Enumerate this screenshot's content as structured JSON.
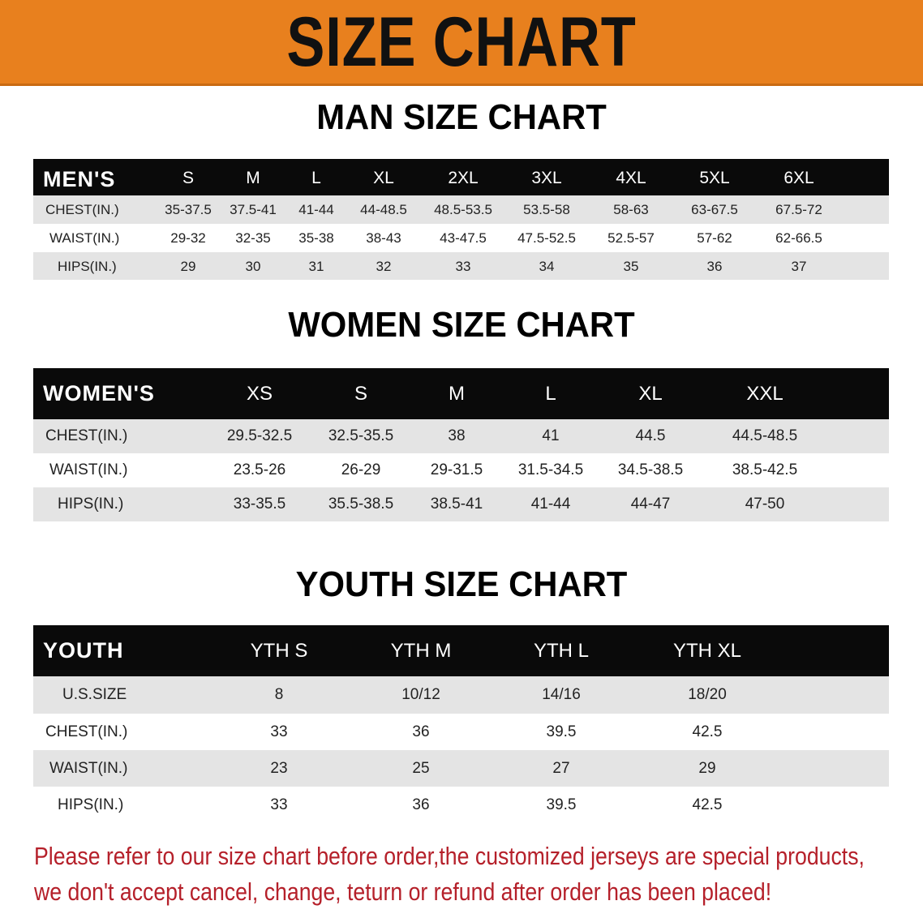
{
  "banner": {
    "title": "SIZE CHART",
    "color": "#e8801e"
  },
  "men": {
    "title": "MAN SIZE CHART",
    "header": [
      "MEN'S",
      "S",
      "M",
      "L",
      "XL",
      "2XL",
      "3XL",
      "4XL",
      "5XL",
      "6XL"
    ],
    "rows": [
      [
        "CHEST(IN.)",
        "35-37.5",
        "37.5-41",
        "41-44",
        "44-48.5",
        "48.5-53.5",
        "53.5-58",
        "58-63",
        "63-67.5",
        "67.5-72"
      ],
      [
        "WAIST(IN.)",
        "29-32",
        "32-35",
        "35-38",
        "38-43",
        "43-47.5",
        "47.5-52.5",
        "52.5-57",
        "57-62",
        "62-66.5"
      ],
      [
        "HIPS(IN.)",
        "29",
        "30",
        "31",
        "32",
        "33",
        "34",
        "35",
        "36",
        "37"
      ]
    ]
  },
  "women": {
    "title": "WOMEN SIZE CHART",
    "header": [
      "WOMEN'S",
      "XS",
      "S",
      "M",
      "L",
      "XL",
      "XXL"
    ],
    "rows": [
      [
        "CHEST(IN.)",
        "29.5-32.5",
        "32.5-35.5",
        "38",
        "41",
        "44.5",
        "44.5-48.5"
      ],
      [
        "WAIST(IN.)",
        "23.5-26",
        "26-29",
        "29-31.5",
        "31.5-34.5",
        "34.5-38.5",
        "38.5-42.5"
      ],
      [
        "HIPS(IN.)",
        "33-35.5",
        "35.5-38.5",
        "38.5-41",
        "41-44",
        "44-47",
        "47-50"
      ]
    ]
  },
  "youth": {
    "title": "YOUTH SIZE CHART",
    "header": [
      "YOUTH",
      "YTH S",
      "YTH M",
      "YTH L",
      "YTH XL"
    ],
    "rows": [
      [
        "U.S.SIZE",
        "8",
        "10/12",
        "14/16",
        "18/20"
      ],
      [
        "CHEST(IN.)",
        "33",
        "36",
        "39.5",
        "42.5"
      ],
      [
        "WAIST(IN.)",
        "23",
        "25",
        "27",
        "29"
      ],
      [
        "HIPS(IN.)",
        "33",
        "36",
        "39.5",
        "42.5"
      ]
    ]
  },
  "notice": {
    "line1": "Please refer to our size chart before order,the customized jerseys are special products,",
    "line2": "we don't accept cancel, change, teturn or refund after order has been placed!",
    "color": "#b5202a"
  }
}
